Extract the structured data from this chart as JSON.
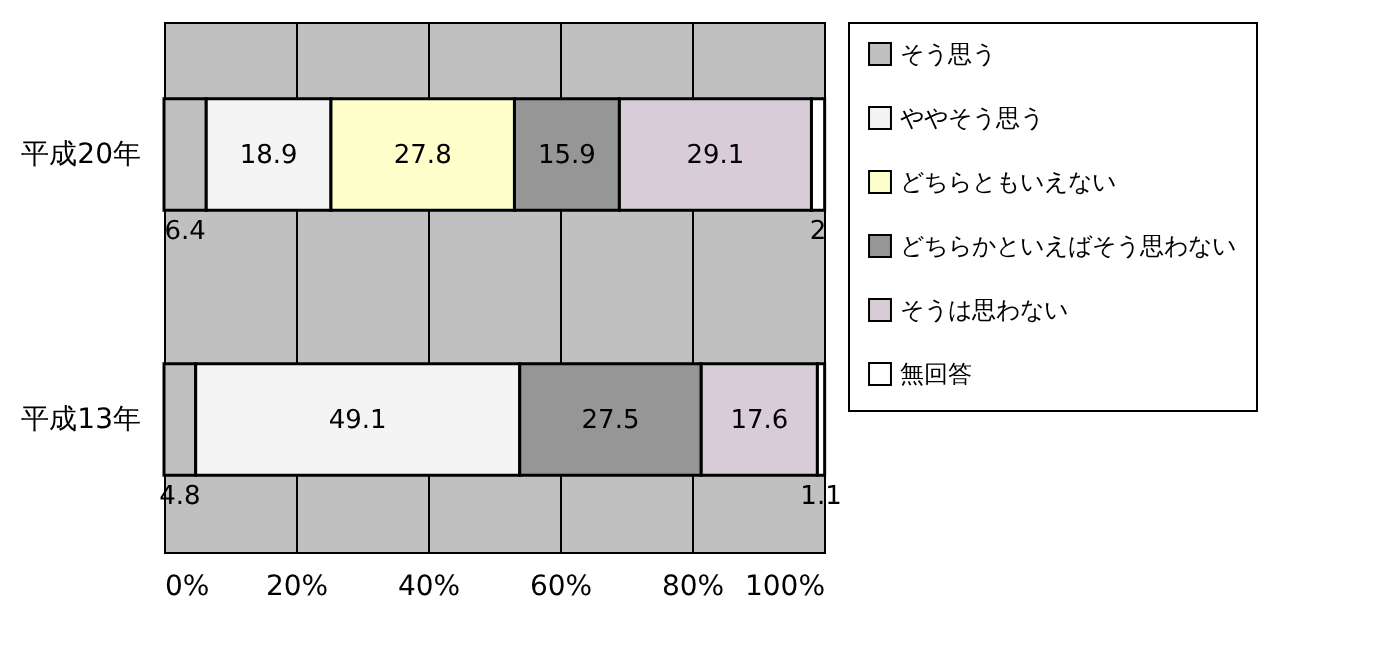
{
  "chart_data": {
    "type": "bar",
    "orientation": "horizontal",
    "stacked": true,
    "categories": [
      "平成20年",
      "平成13年"
    ],
    "series": [
      {
        "name": "そう思う",
        "color": "#c0c0c0",
        "values": [
          6.4,
          4.8
        ]
      },
      {
        "name": "ややそう思う",
        "color": "#f4f4f4",
        "values": [
          18.9,
          49.1
        ]
      },
      {
        "name": "どちらともいえない",
        "color": "#ffffcc",
        "values": [
          27.8,
          null
        ]
      },
      {
        "name": "どちらかといえばそう思わない",
        "color": "#969696",
        "values": [
          15.9,
          27.5
        ]
      },
      {
        "name": "そうは思わない",
        "color": "#d8ccd8",
        "values": [
          29.1,
          17.6
        ]
      },
      {
        "name": "無回答",
        "color": "#ffffff",
        "values": [
          2,
          1.1
        ]
      }
    ],
    "xlim": [
      0,
      100
    ],
    "xticks": [
      {
        "value": 0,
        "label": "0%"
      },
      {
        "value": 20,
        "label": "20%"
      },
      {
        "value": 40,
        "label": "40%"
      },
      {
        "value": 60,
        "label": "60%"
      },
      {
        "value": 80,
        "label": "80%"
      },
      {
        "value": 100,
        "label": "100%"
      }
    ],
    "grid": "x",
    "legend": "right",
    "data_labels": true
  }
}
